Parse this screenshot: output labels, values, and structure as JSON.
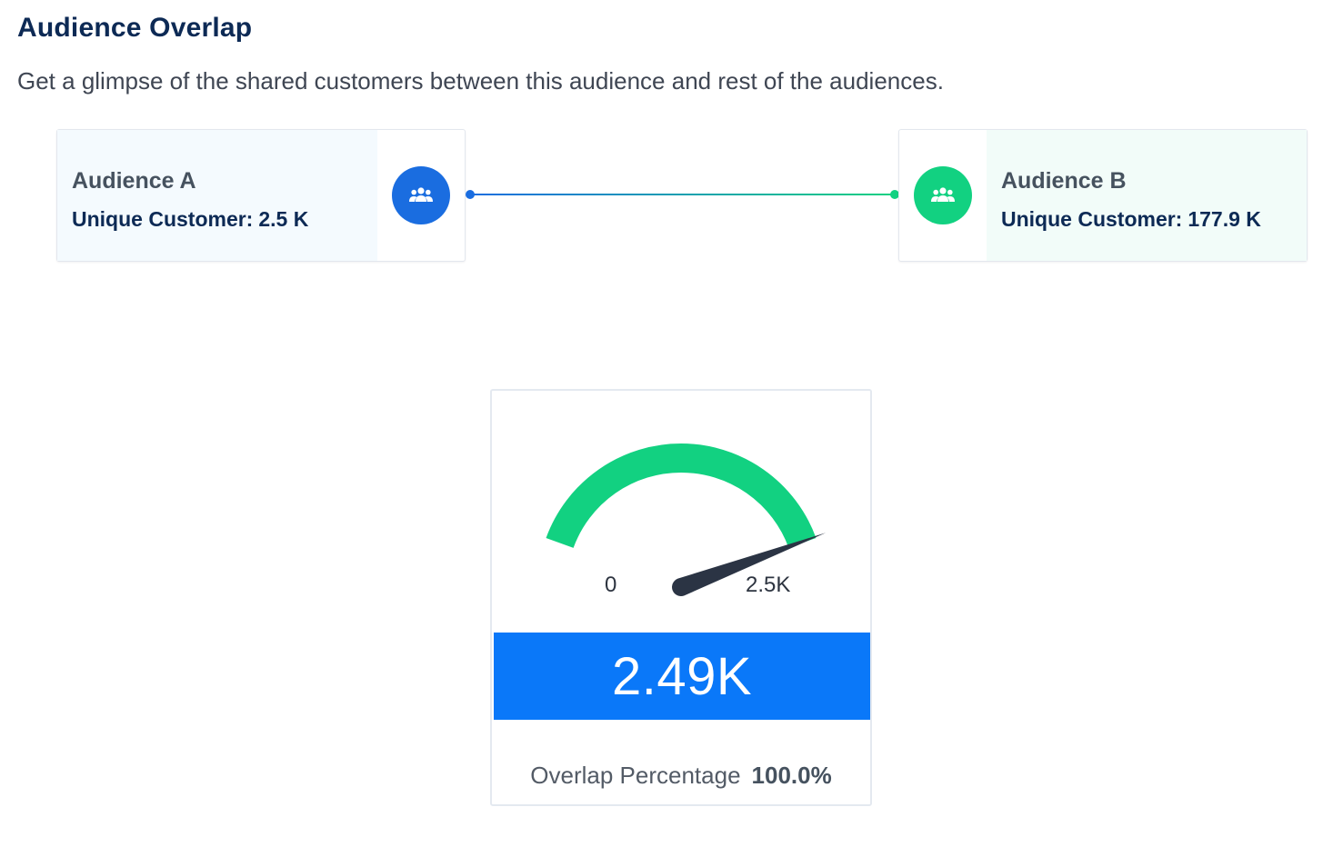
{
  "header": {
    "title": "Audience Overlap",
    "subtitle": "Get a glimpse of the shared customers between this audience and rest of the audiences."
  },
  "audience_a": {
    "name": "Audience A",
    "count_label": "Unique Customer:",
    "count_value": "2.5 K",
    "icon": "users-icon",
    "color": "#1a6de0"
  },
  "audience_b": {
    "name": "Audience B",
    "count_label": "Unique Customer:",
    "count_value": "177.9 K",
    "icon": "users-icon",
    "color": "#12d181"
  },
  "gauge": {
    "min_label": "0",
    "max_label": "2.5K",
    "min": 0,
    "max": 2500,
    "value": 2490,
    "value_label": "2.49K",
    "arc_color": "#12d181",
    "value_bar_color": "#0a78f9",
    "overlap_label": "Overlap Percentage",
    "overlap_value": "100.0%"
  }
}
